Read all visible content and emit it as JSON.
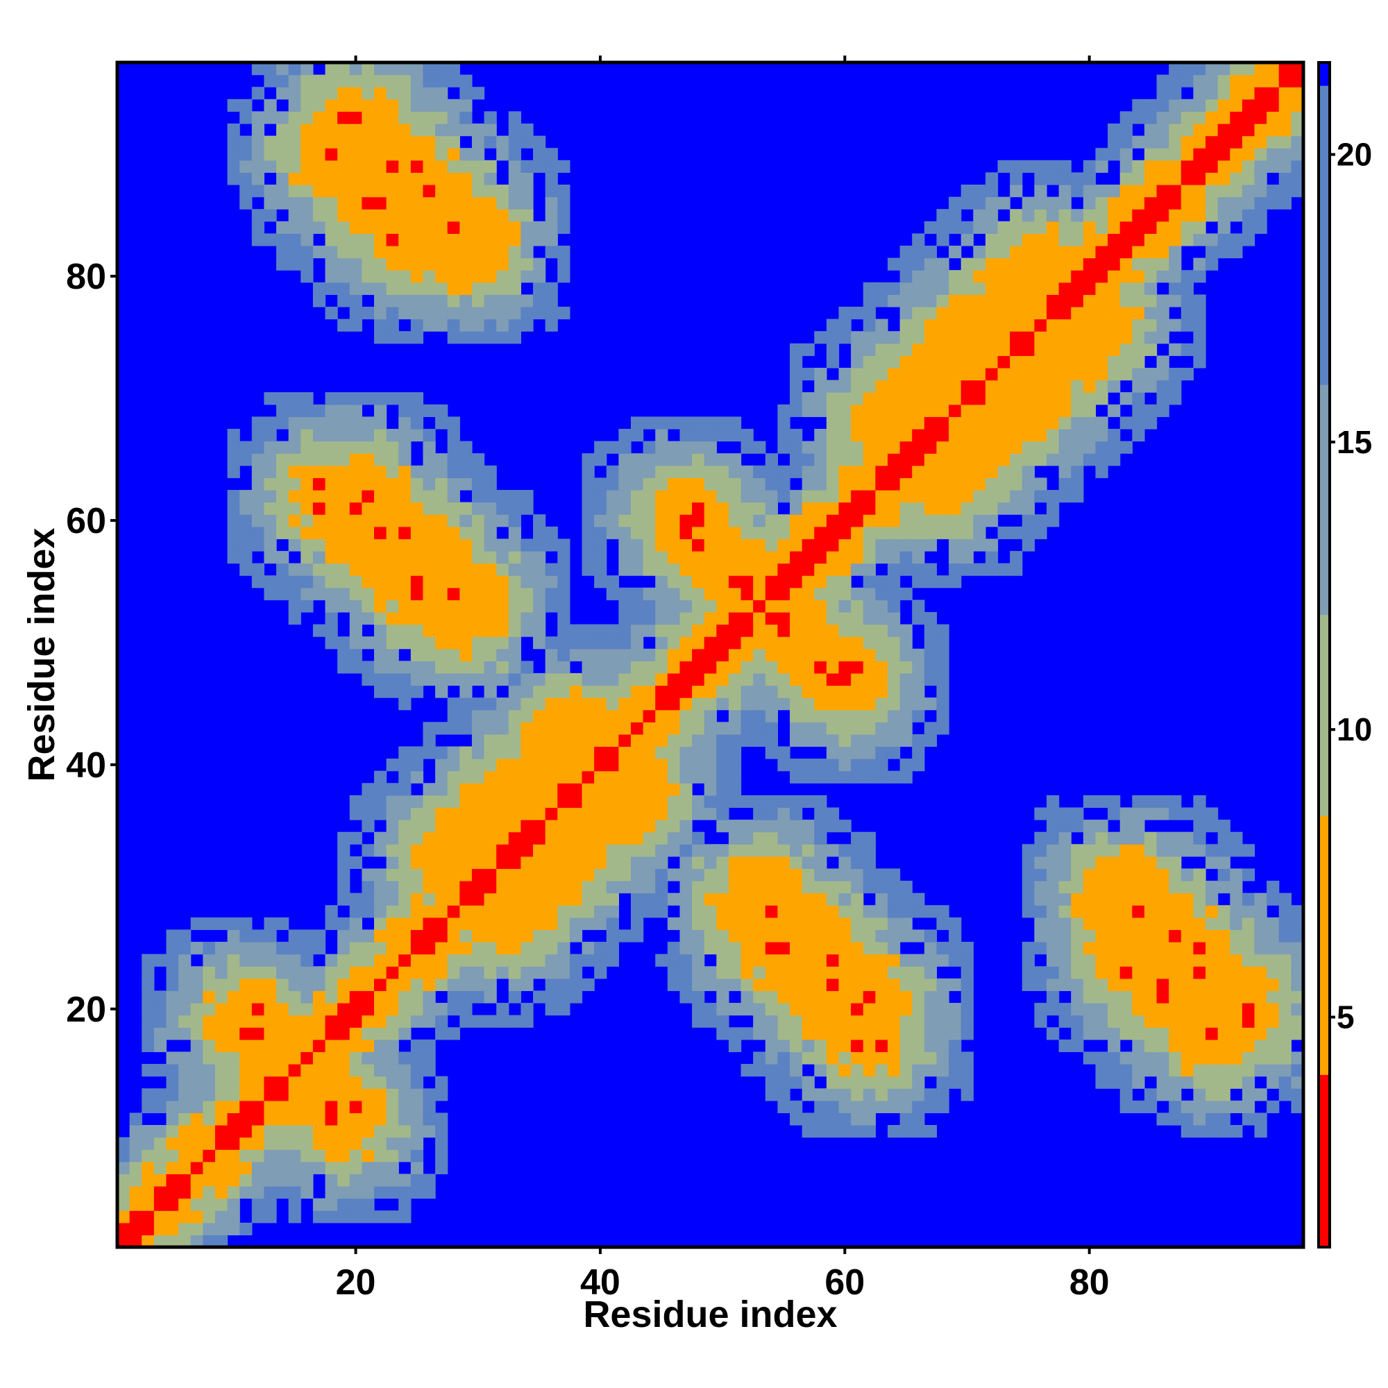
{
  "chart_data": {
    "type": "heatmap",
    "title": "",
    "xlabel": "Residue index",
    "ylabel": "Residue index",
    "n_residues": 97,
    "xlim": [
      0.5,
      97.5
    ],
    "ylim": [
      0.5,
      97.5
    ],
    "x_ticks": [
      20,
      40,
      60,
      80
    ],
    "y_ticks": [
      20,
      40,
      60,
      80
    ],
    "x_tick_labels": [
      "20",
      "40",
      "60",
      "80"
    ],
    "y_tick_labels": [
      "20",
      "40",
      "60",
      "80"
    ],
    "colorbar": {
      "range": [
        1,
        21.6
      ],
      "ticks": [
        5,
        10,
        15,
        20
      ],
      "tick_labels": [
        "5",
        "10",
        "15",
        "20"
      ],
      "bands": [
        {
          "from": 1,
          "to": 4,
          "color": "#ff0000"
        },
        {
          "from": 4,
          "to": 8.5,
          "color": "#ffa500"
        },
        {
          "from": 8.5,
          "to": 12,
          "color": "#a3b88a"
        },
        {
          "from": 12,
          "to": 16,
          "color": "#7f9db4"
        },
        {
          "from": 16,
          "to": 21.2,
          "color": "#5b82c2"
        },
        {
          "from": 21.2,
          "to": 21.6,
          "color": "#0000ff"
        }
      ]
    },
    "description_of_values": "Symmetric residue-residue distance map; diagonal ~1-4 (red), secondary structure contacts 4-8 (orange), background >21 (blue).",
    "contact_features": [
      {
        "kind": "diagonal",
        "from": 1,
        "to": 97,
        "value": 2
      },
      {
        "kind": "antiparallel",
        "i_start": 12,
        "j_start": 18,
        "len": 8,
        "value": 5,
        "width": 1.5
      },
      {
        "kind": "antiparallel",
        "i_start": 20,
        "j_start": 92,
        "len": 10,
        "value": 5,
        "width": 2
      },
      {
        "kind": "antiparallel",
        "i_start": 20,
        "j_start": 62,
        "len": 10,
        "value": 5,
        "width": 2
      },
      {
        "kind": "antiparallel",
        "i_start": 47,
        "j_start": 60,
        "len": 7,
        "value": 5,
        "width": 1.5
      },
      {
        "kind": "antiparallel",
        "i_start": 54,
        "j_start": 26,
        "len": 9,
        "value": 5,
        "width": 1.5
      },
      {
        "kind": "antiparallel",
        "i_start": 83,
        "j_start": 25,
        "len": 8,
        "value": 5,
        "width": 1.5
      },
      {
        "kind": "parallel",
        "i_start": 27,
        "j_start": 32,
        "len": 12,
        "value": 6,
        "width": 1.5
      },
      {
        "kind": "parallel",
        "i_start": 63,
        "j_start": 68,
        "len": 14,
        "value": 6,
        "width": 1.5
      }
    ]
  }
}
